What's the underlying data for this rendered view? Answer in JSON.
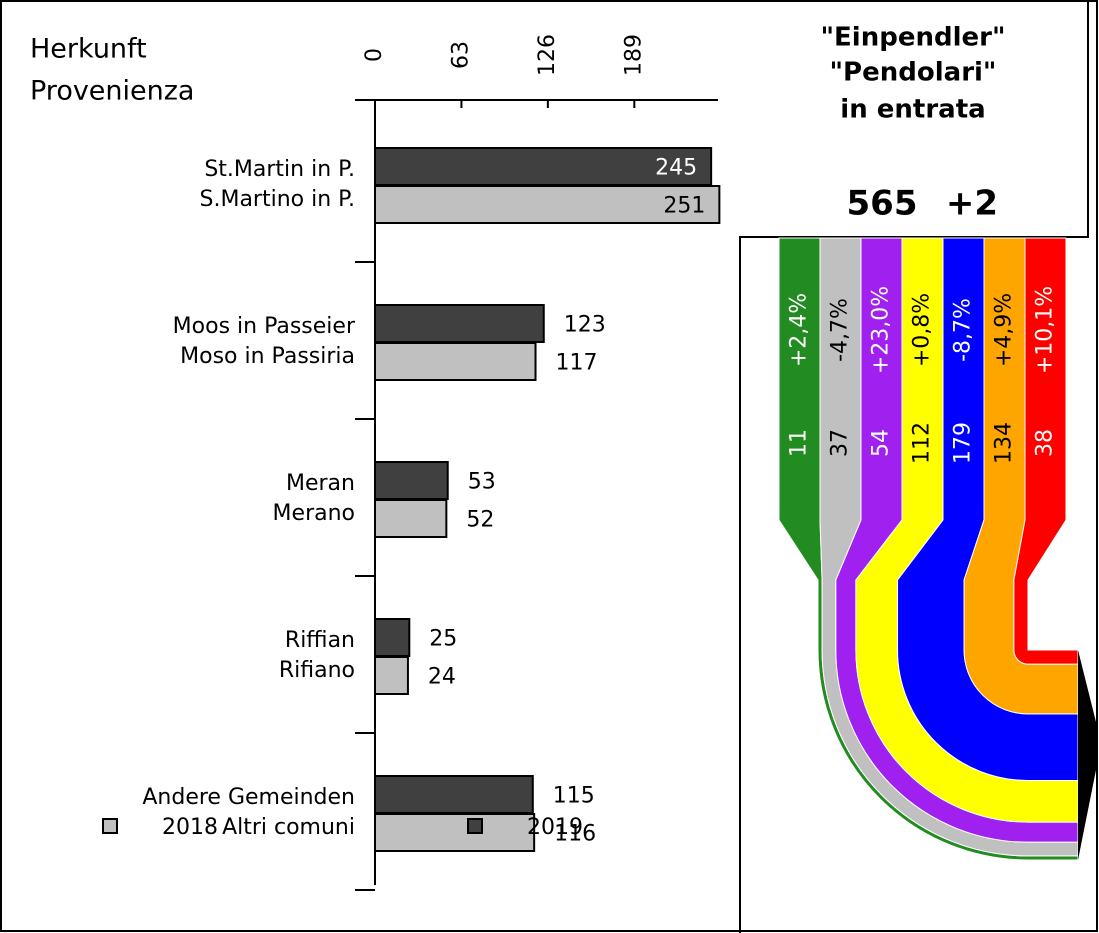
{
  "chart_data": {
    "type": "bar",
    "orientation": "horizontal",
    "axis_label": [
      "Herkunft",
      "Provenienza"
    ],
    "categories": [
      [
        "St.Martin in P.",
        "S.Martino in P."
      ],
      [
        "Moos in Passeier",
        "Moso in Passiria"
      ],
      [
        "Meran",
        "Merano"
      ],
      [
        "Riffian",
        "Rifiano"
      ],
      [
        "Andere Gemeinden",
        "Altri comuni"
      ]
    ],
    "series": [
      {
        "name": "2019",
        "color": "#404040",
        "values": [
          245,
          123,
          53,
          25,
          115
        ]
      },
      {
        "name": "2018",
        "color": "#c0c0c0",
        "values": [
          251,
          117,
          52,
          24,
          116
        ]
      }
    ],
    "xlim": [
      0,
      250
    ],
    "xticks": [
      0,
      63,
      126,
      189
    ],
    "legend_order": [
      1,
      0
    ],
    "flows": {
      "title": [
        "\"Einpendler\"",
        "\"Pendolari\"",
        "in entrata"
      ],
      "total": 565,
      "change": 2,
      "change_label": "+2",
      "streams": [
        {
          "color": "#228b22",
          "text_color": "#ffffff",
          "count": 11,
          "change": 2.4,
          "change_label": "+2,4%"
        },
        {
          "color": "#c0c0c0",
          "text_color": "#000000",
          "count": 37,
          "change": -4.7,
          "change_label": "-4,7%"
        },
        {
          "color": "#a020f0",
          "text_color": "#ffffff",
          "count": 54,
          "change": 23.0,
          "change_label": "+23,0%"
        },
        {
          "color": "#ffff00",
          "text_color": "#000000",
          "count": 112,
          "change": 0.8,
          "change_label": "+0,8%"
        },
        {
          "color": "#0000ff",
          "text_color": "#ffffff",
          "count": 179,
          "change": -8.7,
          "change_label": "-8,7%"
        },
        {
          "color": "#ffa500",
          "text_color": "#000000",
          "count": 134,
          "change": 4.9,
          "change_label": "+4,9%"
        },
        {
          "color": "#ff0000",
          "text_color": "#ffffff",
          "count": 38,
          "change": 10.1,
          "change_label": "+10,1%"
        }
      ]
    }
  }
}
